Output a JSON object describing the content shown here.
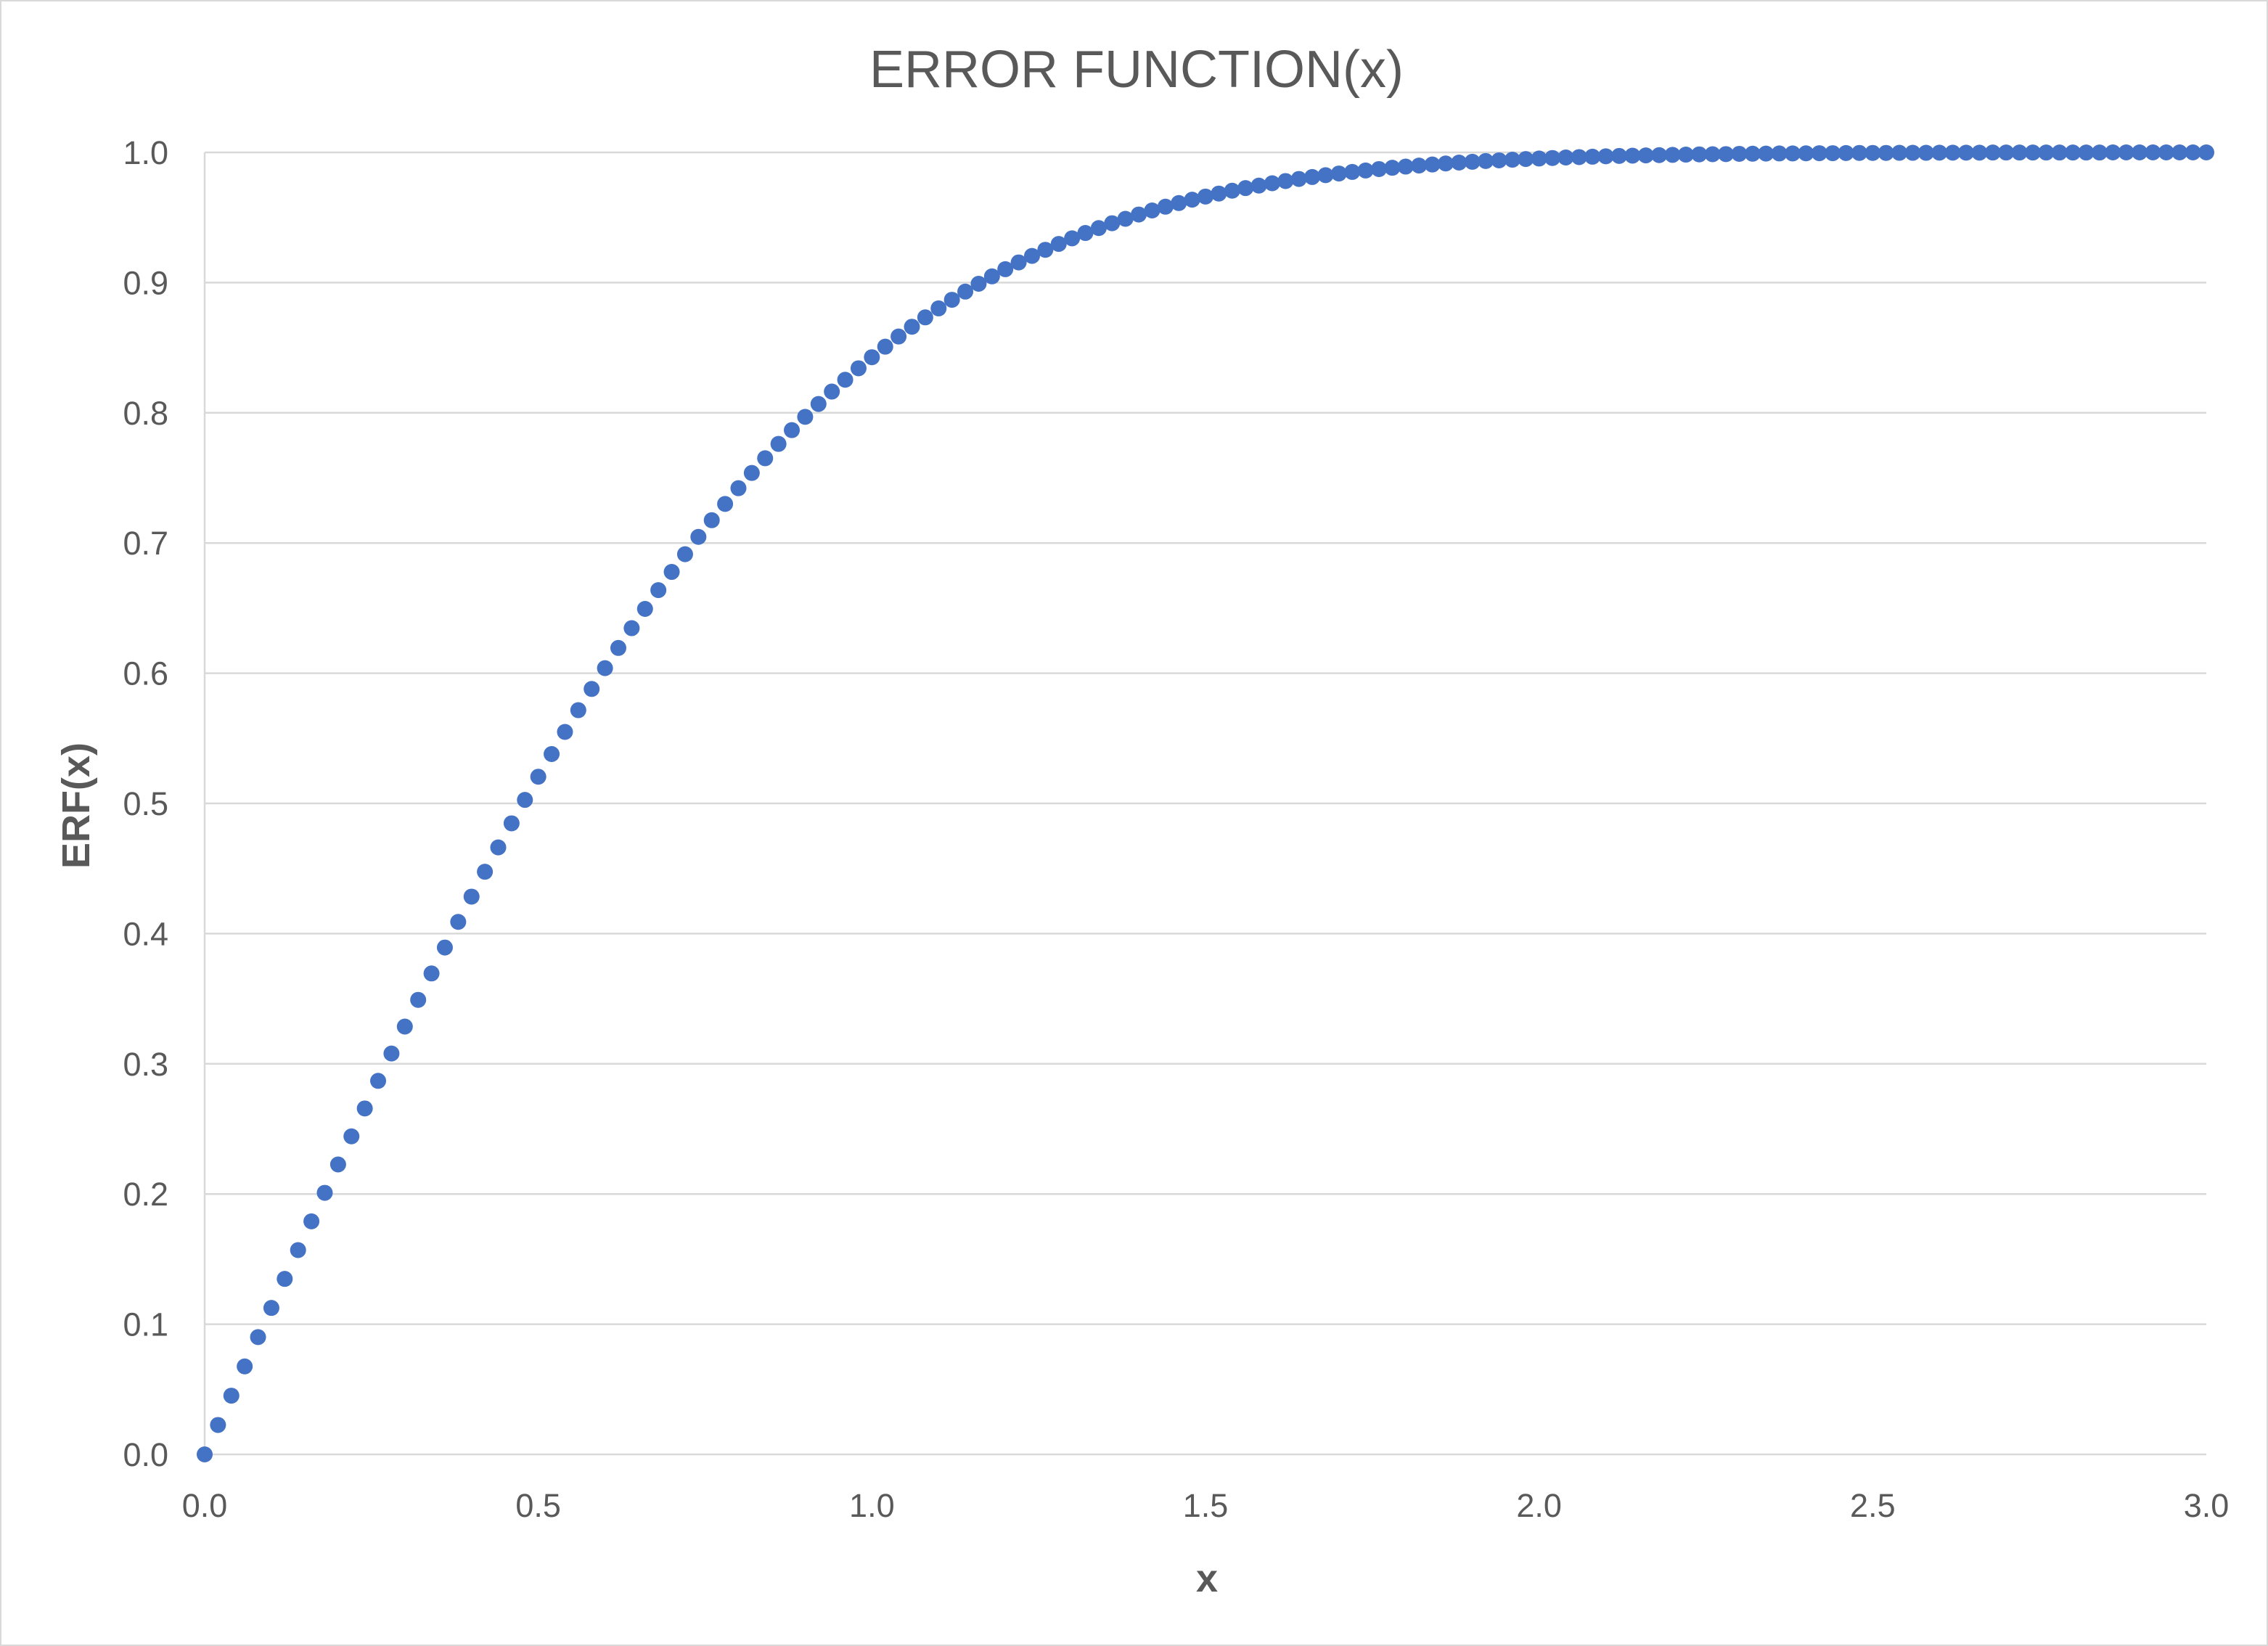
{
  "colors": {
    "marker": "#4472c4",
    "gridline": "#d9d9d9",
    "text": "#595959",
    "background": "#ffffff"
  },
  "chart_data": {
    "type": "scatter",
    "title": "ERROR FUNCTION(x)",
    "xlabel": "x",
    "ylabel": "ERF(x)",
    "xlim": [
      0,
      3
    ],
    "ylim": [
      0,
      1
    ],
    "x_ticks": [
      "0.0",
      "0.5",
      "1.0",
      "1.5",
      "2.0",
      "2.5",
      "3.0"
    ],
    "y_ticks": [
      "0.0",
      "0.1",
      "0.2",
      "0.3",
      "0.4",
      "0.5",
      "0.6",
      "0.7",
      "0.8",
      "0.9",
      "1.0"
    ],
    "grid": "horizontal",
    "legend": "none",
    "series": [
      {
        "x": [
          0.0,
          0.02,
          0.04,
          0.06,
          0.08,
          0.1,
          0.12,
          0.14,
          0.16,
          0.18,
          0.2,
          0.22,
          0.24,
          0.26,
          0.28,
          0.3,
          0.32,
          0.34,
          0.36,
          0.38,
          0.4,
          0.42,
          0.44,
          0.46,
          0.48,
          0.5,
          0.52,
          0.54,
          0.56,
          0.58,
          0.6,
          0.62,
          0.64,
          0.66,
          0.68,
          0.7,
          0.72,
          0.74,
          0.76,
          0.78,
          0.8,
          0.82,
          0.84,
          0.86,
          0.88,
          0.9,
          0.92,
          0.94,
          0.96,
          0.98,
          1.0,
          1.02,
          1.04,
          1.06,
          1.08,
          1.1,
          1.12,
          1.14,
          1.16,
          1.18,
          1.2,
          1.22,
          1.24,
          1.26,
          1.28,
          1.3,
          1.32,
          1.34,
          1.36,
          1.38,
          1.4,
          1.42,
          1.44,
          1.46,
          1.48,
          1.5,
          1.52,
          1.54,
          1.56,
          1.58,
          1.6,
          1.62,
          1.64,
          1.66,
          1.68,
          1.7,
          1.72,
          1.74,
          1.76,
          1.78,
          1.8,
          1.82,
          1.84,
          1.86,
          1.88,
          1.9,
          1.92,
          1.94,
          1.96,
          1.98,
          2.0,
          2.02,
          2.04,
          2.06,
          2.08,
          2.1,
          2.12,
          2.14,
          2.16,
          2.18,
          2.2,
          2.22,
          2.24,
          2.26,
          2.28,
          2.3,
          2.32,
          2.34,
          2.36,
          2.38,
          2.4,
          2.42,
          2.44,
          2.46,
          2.48,
          2.5,
          2.52,
          2.54,
          2.56,
          2.58,
          2.6,
          2.62,
          2.64,
          2.66,
          2.68,
          2.7,
          2.72,
          2.74,
          2.76,
          2.78,
          2.8,
          2.82,
          2.84,
          2.86,
          2.88,
          2.9,
          2.92,
          2.94,
          2.96,
          2.98,
          3.0
        ],
        "y": [
          0.0,
          0.0226,
          0.0451,
          0.0676,
          0.0901,
          0.1125,
          0.1348,
          0.1569,
          0.179,
          0.2009,
          0.2227,
          0.2443,
          0.2657,
          0.2869,
          0.3079,
          0.3286,
          0.3491,
          0.3694,
          0.3893,
          0.409,
          0.4284,
          0.4475,
          0.4662,
          0.4847,
          0.5027,
          0.5205,
          0.5379,
          0.5549,
          0.5716,
          0.5879,
          0.6039,
          0.6194,
          0.6346,
          0.6494,
          0.6638,
          0.6778,
          0.6914,
          0.7047,
          0.7175,
          0.73,
          0.7421,
          0.7538,
          0.7651,
          0.7761,
          0.7867,
          0.7969,
          0.8068,
          0.8163,
          0.8254,
          0.8342,
          0.8427,
          0.8508,
          0.8586,
          0.8661,
          0.8733,
          0.8802,
          0.8868,
          0.8931,
          0.8991,
          0.9048,
          0.9103,
          0.9155,
          0.9205,
          0.9252,
          0.9297,
          0.934,
          0.9381,
          0.9419,
          0.9456,
          0.949,
          0.9523,
          0.9554,
          0.9583,
          0.9611,
          0.9637,
          0.9661,
          0.9684,
          0.9706,
          0.9726,
          0.9745,
          0.9763,
          0.978,
          0.9796,
          0.9811,
          0.9825,
          0.9838,
          0.985,
          0.9861,
          0.9872,
          0.9882,
          0.9891,
          0.9899,
          0.9907,
          0.9915,
          0.9922,
          0.9928,
          0.9934,
          0.9939,
          0.9944,
          0.9949,
          0.9953,
          0.9957,
          0.9961,
          0.9964,
          0.9967,
          0.997,
          0.9973,
          0.9975,
          0.9977,
          0.9979,
          0.9981,
          0.9983,
          0.9985,
          0.9986,
          0.9987,
          0.9989,
          0.999,
          0.9991,
          0.9992,
          0.9992,
          0.9993,
          0.9994,
          0.9994,
          0.9995,
          0.9996,
          0.9996,
          0.9996,
          0.9997,
          0.9997,
          0.9997,
          0.9998,
          0.9998,
          0.9998,
          0.9998,
          0.9999,
          0.9999,
          0.9999,
          0.9999,
          0.9999,
          0.9999,
          0.9999,
          0.9999,
          0.9999,
          1.0,
          1.0,
          1.0,
          1.0,
          1.0,
          1.0,
          1.0,
          1.0
        ]
      }
    ]
  }
}
